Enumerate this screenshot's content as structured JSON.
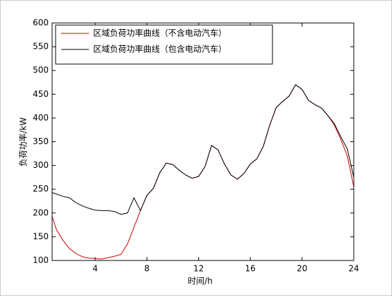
{
  "chart_data": {
    "type": "line",
    "xlabel": "时间/h",
    "ylabel": "负荷功率/kW",
    "x": [
      0.67,
      1,
      1.5,
      2,
      2.5,
      3,
      3.5,
      4,
      4.5,
      5,
      5.5,
      6,
      6.5,
      7,
      7.5,
      8,
      8.5,
      9,
      9.5,
      10,
      10.5,
      11,
      11.5,
      12,
      12.5,
      13,
      13.5,
      14,
      14.5,
      15,
      15.5,
      16,
      16.5,
      17,
      17.5,
      18,
      18.5,
      19,
      19.5,
      20,
      20.5,
      21,
      21.5,
      22,
      22.5,
      23,
      23.5,
      24
    ],
    "series": [
      {
        "name": "区域负荷功率曲线（不含电动汽车）",
        "color": "#cc0000",
        "values": [
          193,
          165,
          143,
          125,
          115,
          108,
          105,
          104,
          103,
          106,
          109,
          113,
          135,
          170,
          205,
          237,
          252,
          285,
          305,
          302,
          290,
          280,
          273,
          277,
          298,
          342,
          333,
          303,
          280,
          271,
          283,
          303,
          314,
          340,
          385,
          422,
          435,
          446,
          470,
          460,
          437,
          428,
          421,
          405,
          385,
          355,
          320,
          255
        ]
      },
      {
        "name": "区域负荷功率曲线（包含电动汽车）",
        "color": "#000000",
        "values": [
          243,
          240,
          235,
          232,
          222,
          215,
          210,
          206,
          205,
          205,
          203,
          197,
          200,
          232,
          205,
          237,
          252,
          285,
          305,
          302,
          290,
          280,
          273,
          277,
          298,
          342,
          333,
          303,
          280,
          271,
          283,
          303,
          314,
          340,
          385,
          422,
          435,
          446,
          470,
          460,
          437,
          428,
          421,
          405,
          388,
          360,
          335,
          275
        ]
      }
    ],
    "xlim": [
      0.67,
      24
    ],
    "xticks": [
      4,
      8,
      12,
      16,
      20,
      24
    ],
    "ylim": [
      100,
      600
    ],
    "yticks": [
      100,
      150,
      200,
      250,
      300,
      350,
      400,
      450,
      500,
      550,
      600
    ],
    "grid": false,
    "legend": "upper left"
  }
}
